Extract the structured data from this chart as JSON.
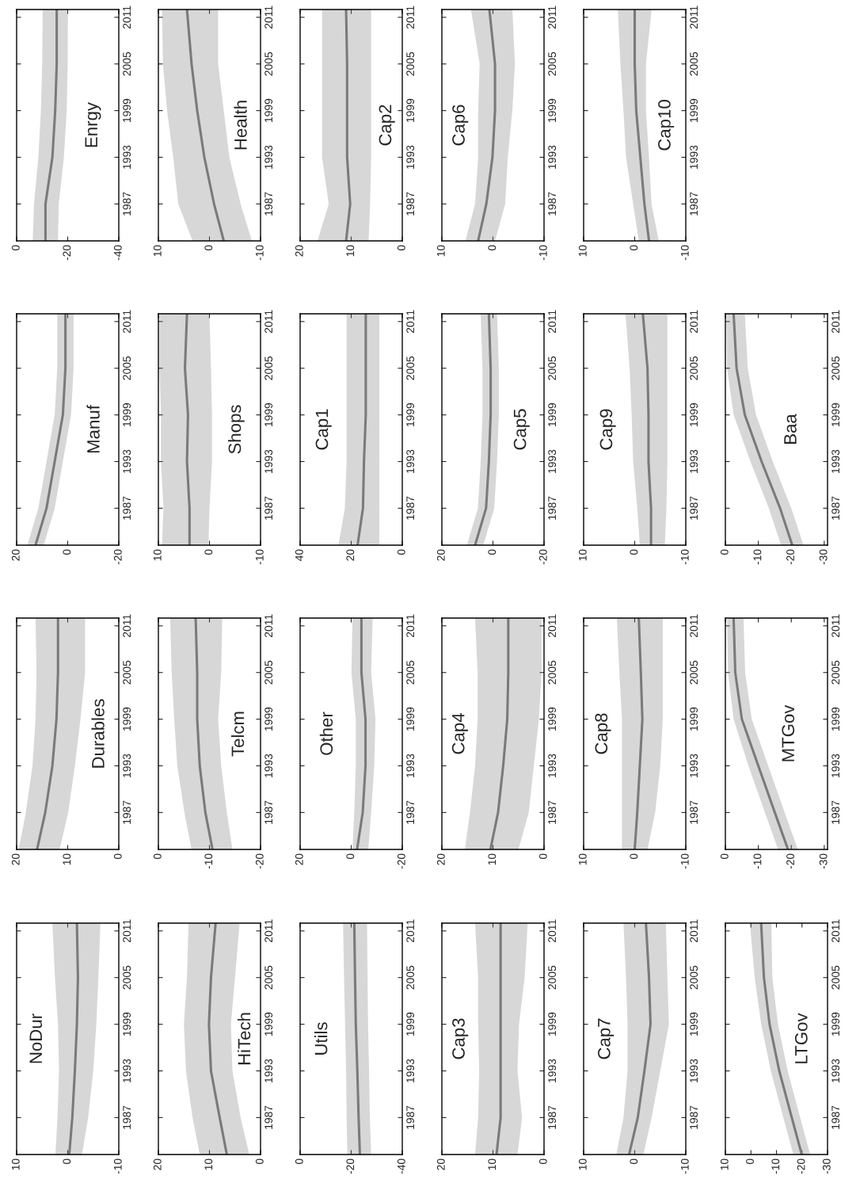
{
  "chart_data": [
    {
      "type": "line",
      "title": "NoDur",
      "orientation": "horizontal",
      "x": [
        1982.25,
        1987,
        1993,
        1999,
        2005,
        2012
      ],
      "ylim": [
        1982.25,
        2012
      ],
      "yticks": [
        1987,
        1993,
        1999,
        2005,
        2011
      ],
      "xlim": [
        10,
        -10
      ],
      "xticks": [
        10,
        0,
        -10
      ],
      "series": [
        {
          "color": "#7a7a7a",
          "values": [
            -0.3,
            -0.9,
            -1.4,
            -1.8,
            -2.0,
            -1.8
          ],
          "upper": [
            2.4,
            2.0,
            1.7,
            1.9,
            2.5,
            3.0
          ],
          "lower": [
            -2.8,
            -4.0,
            -5.0,
            -5.6,
            -6.0,
            -6.4
          ]
        }
      ]
    },
    {
      "type": "line",
      "title": "Durables",
      "orientation": "horizontal",
      "x": [
        1982.25,
        1987,
        1993,
        1999,
        2005,
        2012
      ],
      "ylim": [
        1982.25,
        2012
      ],
      "yticks": [
        1987,
        1993,
        1999,
        2005,
        2011
      ],
      "xlim": [
        20,
        0
      ],
      "xticks": [
        20,
        10,
        0
      ],
      "series": [
        {
          "color": "#7a7a7a",
          "values": [
            16.0,
            14.4,
            13.0,
            12.2,
            11.9,
            11.9
          ],
          "upper": [
            19.6,
            18.2,
            16.9,
            16.3,
            16.1,
            16.3
          ],
          "lower": [
            11.6,
            9.9,
            8.6,
            7.5,
            6.6,
            6.6
          ]
        }
      ]
    },
    {
      "type": "line",
      "title": "Manuf",
      "orientation": "horizontal",
      "x": [
        1982.25,
        1987,
        1993,
        1999,
        2005,
        2012
      ],
      "ylim": [
        1982.25,
        2012
      ],
      "yticks": [
        1987,
        1993,
        1999,
        2005,
        2011
      ],
      "xlim": [
        20,
        -20
      ],
      "xticks": [
        20,
        0,
        -20
      ],
      "series": [
        {
          "color": "#7a7a7a",
          "values": [
            12.6,
            8.3,
            5.1,
            1.9,
            0.9,
            0.9
          ],
          "upper": [
            15.8,
            11.5,
            8.3,
            5.1,
            4.1,
            4.1
          ],
          "lower": [
            9.4,
            5.1,
            1.9,
            -1.3,
            -2.3,
            -2.3
          ]
        }
      ]
    },
    {
      "type": "line",
      "title": "Enrgy",
      "orientation": "horizontal",
      "x": [
        1982.25,
        1987,
        1993,
        1999,
        2005,
        2012
      ],
      "ylim": [
        1982.25,
        2012
      ],
      "yticks": [
        1987,
        1993,
        1999,
        2005,
        2011
      ],
      "xlim": [
        0,
        -40
      ],
      "xticks": [
        0,
        -20,
        -40
      ],
      "series": [
        {
          "color": "#7a7a7a",
          "values": [
            -11.3,
            -11.3,
            -14.0,
            -15.1,
            -15.7,
            -15.7
          ],
          "upper": [
            -6.3,
            -6.8,
            -8.5,
            -9.5,
            -10.0,
            -10.2
          ],
          "lower": [
            -16.2,
            -16.5,
            -18.5,
            -19.6,
            -20.0,
            -20.1
          ]
        }
      ]
    },
    {
      "type": "line",
      "title": "HiTech",
      "orientation": "horizontal",
      "x": [
        1982.25,
        1987,
        1993,
        1999,
        2005,
        2012
      ],
      "ylim": [
        1982.25,
        2012
      ],
      "yticks": [
        1987,
        1993,
        1999,
        2005,
        2011
      ],
      "xlim": [
        20,
        0
      ],
      "xticks": [
        20,
        10,
        0
      ],
      "series": [
        {
          "color": "#7a7a7a",
          "values": [
            6.6,
            8.0,
            9.7,
            10.1,
            9.7,
            8.8
          ],
          "upper": [
            11.9,
            13.3,
            14.6,
            15.0,
            14.4,
            14.1
          ],
          "lower": [
            2.2,
            3.9,
            5.5,
            5.8,
            5.0,
            4.1
          ]
        }
      ]
    },
    {
      "type": "line",
      "title": "Telcm",
      "orientation": "horizontal",
      "x": [
        1982.25,
        1987,
        1993,
        1999,
        2005,
        2012
      ],
      "ylim": [
        1982.25,
        2012
      ],
      "yticks": [
        1987,
        1993,
        1999,
        2005,
        2011
      ],
      "xlim": [
        0,
        -20
      ],
      "xticks": [
        0,
        -10,
        -20
      ],
      "series": [
        {
          "color": "#7a7a7a",
          "values": [
            -10.6,
            -9.2,
            -8.1,
            -7.6,
            -7.6,
            -7.3
          ],
          "upper": [
            -6.5,
            -5.1,
            -3.7,
            -3.1,
            -2.6,
            -2.3
          ],
          "lower": [
            -14.5,
            -13.4,
            -12.3,
            -11.7,
            -12.3,
            -12.5
          ]
        }
      ]
    },
    {
      "type": "line",
      "title": "Shops",
      "orientation": "horizontal",
      "x": [
        1982.25,
        1987,
        1993,
        1999,
        2005,
        2012
      ],
      "ylim": [
        1982.25,
        2012
      ],
      "yticks": [
        1987,
        1993,
        1999,
        2005,
        2011
      ],
      "xlim": [
        10,
        -10
      ],
      "xticks": [
        10,
        0,
        -10
      ],
      "series": [
        {
          "color": "#7a7a7a",
          "values": [
            3.9,
            3.9,
            4.4,
            4.2,
            4.8,
            4.4
          ],
          "upper": [
            9.3,
            9.0,
            9.5,
            9.5,
            9.8,
            9.8
          ],
          "lower": [
            0.2,
            0.0,
            -0.5,
            -0.5,
            -0.3,
            0.0
          ]
        }
      ]
    },
    {
      "type": "line",
      "title": "Health",
      "orientation": "horizontal",
      "x": [
        1982.25,
        1987,
        1993,
        1999,
        2005,
        2012
      ],
      "ylim": [
        1982.25,
        2012
      ],
      "yticks": [
        1987,
        1993,
        1999,
        2005,
        2011
      ],
      "xlim": [
        10,
        -10
      ],
      "xticks": [
        10,
        0,
        -10
      ],
      "series": [
        {
          "color": "#7a7a7a",
          "values": [
            -2.8,
            -0.9,
            1.0,
            2.4,
            3.5,
            4.4
          ],
          "upper": [
            3.3,
            6.1,
            7.1,
            8.3,
            9.1,
            9.3
          ],
          "lower": [
            -8.3,
            -6.1,
            -3.9,
            -2.8,
            -1.7,
            -1.7
          ]
        }
      ]
    },
    {
      "type": "line",
      "title": "Utils",
      "orientation": "horizontal",
      "x": [
        1982.25,
        1987,
        1993,
        1999,
        2005,
        2012
      ],
      "ylim": [
        1982.25,
        2012
      ],
      "yticks": [
        1987,
        1993,
        1999,
        2005,
        2011
      ],
      "xlim": [
        0,
        -40
      ],
      "xticks": [
        0,
        -20,
        -40
      ],
      "series": [
        {
          "color": "#7a7a7a",
          "values": [
            -23.4,
            -22.9,
            -22.4,
            -21.8,
            -21.5,
            -21.2
          ],
          "upper": [
            -18.5,
            -18.2,
            -18.0,
            -17.6,
            -17.2,
            -16.8
          ],
          "lower": [
            -27.8,
            -27.3,
            -27.0,
            -26.6,
            -26.4,
            -26.2
          ]
        }
      ]
    },
    {
      "type": "line",
      "title": "Other",
      "orientation": "horizontal",
      "x": [
        1982.25,
        1987,
        1993,
        1999,
        2005,
        2012
      ],
      "ylim": [
        1982.25,
        2012
      ],
      "yticks": [
        1987,
        1993,
        1999,
        2005,
        2011
      ],
      "xlim": [
        20,
        -20
      ],
      "xticks": [
        20,
        0,
        -20
      ],
      "series": [
        {
          "color": "#7a7a7a",
          "values": [
            -2.3,
            -4.5,
            -5.6,
            -5.6,
            -4.0,
            -4.0
          ],
          "upper": [
            -0.5,
            -1.2,
            -1.8,
            -1.8,
            -0.1,
            -0.5
          ],
          "lower": [
            -6.7,
            -7.8,
            -9.0,
            -9.5,
            -7.8,
            -8.4
          ]
        }
      ]
    },
    {
      "type": "line",
      "title": "Cap1",
      "orientation": "horizontal",
      "x": [
        1982.25,
        1987,
        1993,
        1999,
        2005,
        2012
      ],
      "ylim": [
        1982.25,
        2012
      ],
      "yticks": [
        1987,
        1993,
        1999,
        2005,
        2011
      ],
      "xlim": [
        40,
        0
      ],
      "xticks": [
        40,
        20,
        0
      ],
      "series": [
        {
          "color": "#7a7a7a",
          "values": [
            17.5,
            15.4,
            15.0,
            14.3,
            14.3,
            14.3
          ],
          "upper": [
            25.0,
            22.5,
            21.8,
            21.8,
            21.8,
            21.8
          ],
          "lower": [
            9.0,
            9.0,
            9.0,
            9.0,
            9.0,
            9.0
          ]
        }
      ]
    },
    {
      "type": "line",
      "title": "Cap2",
      "orientation": "horizontal",
      "x": [
        1982.25,
        1987,
        1993,
        1999,
        2005,
        2012
      ],
      "ylim": [
        1982.25,
        2012
      ],
      "yticks": [
        1987,
        1993,
        1999,
        2005,
        2011
      ],
      "xlim": [
        20,
        0
      ],
      "xticks": [
        20,
        10,
        0
      ],
      "series": [
        {
          "color": "#7a7a7a",
          "values": [
            11.0,
            10.2,
            10.8,
            10.8,
            10.8,
            11.0
          ],
          "upper": [
            16.6,
            14.4,
            15.7,
            15.7,
            15.7,
            15.7
          ],
          "lower": [
            6.6,
            6.3,
            6.1,
            6.1,
            6.1,
            6.1
          ]
        }
      ]
    },
    {
      "type": "line",
      "title": "Cap3",
      "orientation": "horizontal",
      "x": [
        1982.25,
        1987,
        1993,
        1999,
        2005,
        2012
      ],
      "ylim": [
        1982.25,
        2012
      ],
      "yticks": [
        1987,
        1993,
        1999,
        2005,
        2011
      ],
      "xlim": [
        20,
        0
      ],
      "xticks": [
        20,
        10,
        0
      ],
      "series": [
        {
          "color": "#7a7a7a",
          "values": [
            9.3,
            8.5,
            8.5,
            8.5,
            8.5,
            8.5
          ],
          "upper": [
            13.5,
            12.9,
            12.7,
            12.9,
            12.9,
            13.5
          ],
          "lower": [
            5.2,
            4.3,
            5.2,
            4.9,
            3.8,
            3.2
          ]
        }
      ]
    },
    {
      "type": "line",
      "title": "Cap4",
      "orientation": "horizontal",
      "x": [
        1982.25,
        1987,
        1993,
        1999,
        2005,
        2012
      ],
      "ylim": [
        1982.25,
        2012
      ],
      "yticks": [
        1987,
        1993,
        1999,
        2005,
        2011
      ],
      "xlim": [
        20,
        0
      ],
      "xticks": [
        20,
        10,
        0
      ],
      "series": [
        {
          "color": "#7a7a7a",
          "values": [
            10.5,
            9.0,
            8.0,
            7.2,
            7.0,
            7.0
          ],
          "upper": [
            15.5,
            14.5,
            13.5,
            13.0,
            13.0,
            13.5
          ],
          "lower": [
            5.0,
            3.0,
            2.0,
            1.0,
            0.5,
            0.5
          ]
        }
      ]
    },
    {
      "type": "line",
      "title": "Cap5",
      "orientation": "horizontal",
      "x": [
        1982.25,
        1987,
        1993,
        1999,
        2005,
        2012
      ],
      "ylim": [
        1982.25,
        2012
      ],
      "yticks": [
        1987,
        1993,
        1999,
        2005,
        2011
      ],
      "xlim": [
        20,
        -20
      ],
      "xticks": [
        20,
        0,
        -20
      ],
      "series": [
        {
          "color": "#7a7a7a",
          "values": [
            7.0,
            2.7,
            1.6,
            0.9,
            0.9,
            1.6
          ],
          "upper": [
            10.2,
            5.9,
            4.8,
            4.1,
            4.1,
            4.8
          ],
          "lower": [
            3.8,
            -0.5,
            -1.6,
            -2.3,
            -2.3,
            -1.6
          ]
        }
      ]
    },
    {
      "type": "line",
      "title": "Cap6",
      "orientation": "horizontal",
      "x": [
        1982.25,
        1987,
        1993,
        1999,
        2005,
        2012
      ],
      "ylim": [
        1982.25,
        2012
      ],
      "yticks": [
        1987,
        1993,
        1999,
        2005,
        2011
      ],
      "xlim": [
        10,
        -10
      ],
      "xticks": [
        10,
        0,
        -10
      ],
      "series": [
        {
          "color": "#7a7a7a",
          "values": [
            2.9,
            1.3,
            0.1,
            -0.4,
            -0.4,
            0.7
          ],
          "upper": [
            5.4,
            3.5,
            2.9,
            2.9,
            2.6,
            4.3
          ],
          "lower": [
            -0.4,
            -2.4,
            -2.9,
            -3.8,
            -4.3,
            -3.8
          ]
        }
      ]
    },
    {
      "type": "line",
      "title": "Cap7",
      "orientation": "horizontal",
      "x": [
        1982.25,
        1987,
        1993,
        1999,
        2005,
        2012
      ],
      "ylim": [
        1982.25,
        2012
      ],
      "yticks": [
        1987,
        1993,
        1999,
        2005,
        2011
      ],
      "xlim": [
        10,
        -10
      ],
      "xticks": [
        10,
        0,
        -10
      ],
      "series": [
        {
          "color": "#7a7a7a",
          "values": [
            1.1,
            -0.6,
            -1.9,
            -3.1,
            -2.8,
            -2.2
          ],
          "upper": [
            3.6,
            2.2,
            1.4,
            1.4,
            1.7,
            2.2
          ],
          "lower": [
            -1.7,
            -3.3,
            -5.0,
            -6.7,
            -6.4,
            -6.1
          ]
        }
      ]
    },
    {
      "type": "line",
      "title": "Cap8",
      "orientation": "horizontal",
      "x": [
        1982.25,
        1987,
        1993,
        1999,
        2005,
        2012
      ],
      "ylim": [
        1982.25,
        2012
      ],
      "yticks": [
        1987,
        1993,
        1999,
        2005,
        2011
      ],
      "xlim": [
        10,
        -10
      ],
      "xticks": [
        10,
        0,
        -10
      ],
      "series": [
        {
          "color": "#7a7a7a",
          "values": [
            0.0,
            -0.5,
            -1.0,
            -1.5,
            -1.2,
            -0.8
          ],
          "upper": [
            2.5,
            2.5,
            2.5,
            2.5,
            3.0,
            3.5
          ],
          "lower": [
            -2.5,
            -4.0,
            -5.0,
            -5.5,
            -5.5,
            -5.5
          ]
        }
      ]
    },
    {
      "type": "line",
      "title": "Cap9",
      "orientation": "horizontal",
      "x": [
        1982.25,
        1987,
        1993,
        1999,
        2005,
        2012
      ],
      "ylim": [
        1982.25,
        2012
      ],
      "yticks": [
        1987,
        1993,
        1999,
        2005,
        2011
      ],
      "xlim": [
        10,
        -10
      ],
      "xticks": [
        10,
        0,
        -10
      ],
      "series": [
        {
          "color": "#7a7a7a",
          "values": [
            -3.2,
            -3.2,
            -2.7,
            -2.7,
            -2.5,
            -1.6
          ],
          "upper": [
            -1.0,
            -0.5,
            0.3,
            0.6,
            1.0,
            1.8
          ],
          "lower": [
            -5.9,
            -6.2,
            -6.4,
            -6.4,
            -6.4,
            -6.4
          ]
        }
      ]
    },
    {
      "type": "line",
      "title": "Cap10",
      "orientation": "horizontal",
      "x": [
        1982.25,
        1987,
        1993,
        1999,
        2005,
        2012
      ],
      "ylim": [
        1982.25,
        2012
      ],
      "yticks": [
        1987,
        1993,
        1999,
        2005,
        2011
      ],
      "xlim": [
        10,
        -10
      ],
      "xticks": [
        10,
        0,
        -10
      ],
      "series": [
        {
          "color": "#7a7a7a",
          "values": [
            -2.8,
            -1.9,
            -1.1,
            -0.3,
            0.0,
            0.0
          ],
          "upper": [
            -0.8,
            0.3,
            1.7,
            2.2,
            2.8,
            3.3
          ],
          "lower": [
            -4.7,
            -3.3,
            -2.8,
            -2.2,
            -2.2,
            -3.3
          ]
        }
      ]
    },
    {
      "type": "line",
      "title": "LTGov",
      "orientation": "horizontal",
      "x": [
        1982.25,
        1987,
        1993,
        1999,
        2005,
        2012
      ],
      "ylim": [
        1982.25,
        2012
      ],
      "yticks": [
        1987,
        1993,
        1999,
        2005,
        2011
      ],
      "xlim": [
        10,
        -30
      ],
      "xticks": [
        10,
        0,
        -10,
        -20,
        -30
      ],
      "series": [
        {
          "color": "#7a7a7a",
          "values": [
            -19.9,
            -16.0,
            -11.1,
            -7.3,
            -5.1,
            -4.0
          ],
          "upper": [
            -16.6,
            -12.7,
            -7.8,
            -4.0,
            -1.5,
            0.4
          ],
          "lower": [
            -23.2,
            -19.3,
            -14.4,
            -10.6,
            -8.4,
            -8.0
          ]
        }
      ]
    },
    {
      "type": "line",
      "title": "MTGov",
      "orientation": "horizontal",
      "x": [
        1982.25,
        1987,
        1993,
        1999,
        2005,
        2012
      ],
      "ylim": [
        1982.25,
        2012
      ],
      "yticks": [
        1987,
        1993,
        1999,
        2005,
        2011
      ],
      "xlim": [
        0,
        -31
      ],
      "xticks": [
        0,
        -10,
        -20,
        -30
      ],
      "series": [
        {
          "color": "#7a7a7a",
          "values": [
            -19.0,
            -15.0,
            -10.0,
            -5.0,
            -3.0,
            -2.5
          ],
          "upper": [
            -16.0,
            -12.0,
            -7.0,
            -2.5,
            -0.8,
            -0.5
          ],
          "lower": [
            -22.0,
            -18.0,
            -13.0,
            -8.0,
            -6.0,
            -5.5
          ]
        }
      ]
    },
    {
      "type": "line",
      "title": "Baa",
      "orientation": "horizontal",
      "x": [
        1982.25,
        1987,
        1993,
        1999,
        2005,
        2012
      ],
      "ylim": [
        1982.25,
        2012
      ],
      "yticks": [
        1987,
        1993,
        1999,
        2005,
        2011
      ],
      "xlim": [
        0,
        -31
      ],
      "xticks": [
        0,
        -10,
        -20,
        -30
      ],
      "series": [
        {
          "color": "#7a7a7a",
          "values": [
            -20.3,
            -16.6,
            -11.0,
            -5.9,
            -3.4,
            -2.5
          ],
          "upper": [
            -16.9,
            -13.2,
            -7.6,
            -2.5,
            -0.5,
            -0.3
          ],
          "lower": [
            -23.7,
            -20.0,
            -14.4,
            -9.3,
            -6.8,
            -5.9
          ]
        }
      ]
    }
  ]
}
